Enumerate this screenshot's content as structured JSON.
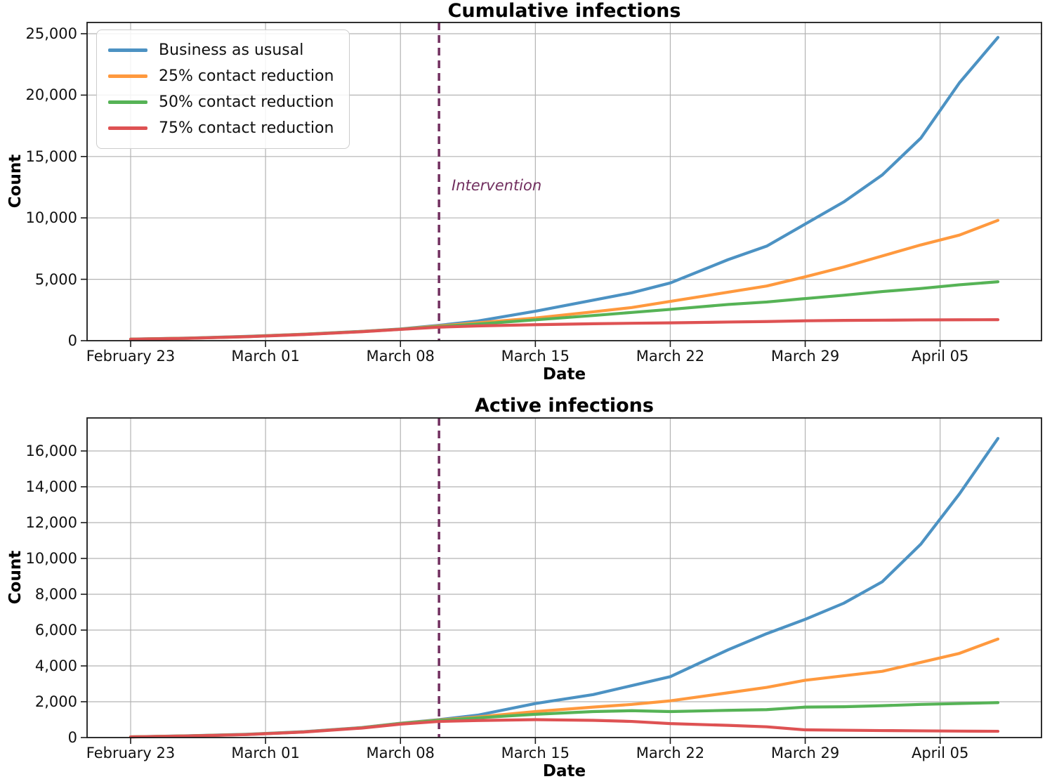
{
  "colors": {
    "blue": "#4C92C3",
    "orange": "#FF993E",
    "green": "#56B356",
    "red": "#DE5253",
    "intervention": "#712F5F",
    "grid": "#B3B3B3",
    "spine": "#1a1a1a"
  },
  "legend": {
    "items": [
      {
        "label": "Business as ususal",
        "color_key": "blue"
      },
      {
        "label": "25% contact reduction",
        "color_key": "orange"
      },
      {
        "label": "50% contact reduction",
        "color_key": "green"
      },
      {
        "label": "75% contact reduction",
        "color_key": "red"
      }
    ]
  },
  "intervention": {
    "label": "Intervention",
    "day": 16
  },
  "chart_data": [
    {
      "type": "line",
      "title": "Cumulative infections",
      "xlabel": "Date",
      "ylabel": "Count",
      "grid": true,
      "legend_position": "upper left",
      "x_tick_labels": [
        "February 23",
        "March 01",
        "March 08",
        "March 15",
        "March 22",
        "March 29",
        "April 05"
      ],
      "x_tick_days": [
        0,
        7,
        14,
        21,
        28,
        35,
        42
      ],
      "x_range_days": [
        0,
        45
      ],
      "y_ticks": [
        0,
        5000,
        10000,
        15000,
        20000,
        25000
      ],
      "y_tick_labels": [
        "0",
        "5,000",
        "10,000",
        "15,000",
        "20,000",
        "25,000"
      ],
      "intervention_day": 16,
      "days": [
        0,
        3,
        6,
        9,
        12,
        14,
        16,
        18,
        21,
        24,
        26,
        28,
        31,
        33,
        35,
        37,
        39,
        41,
        43,
        45
      ],
      "series": [
        {
          "name": "Business as ususal",
          "color_key": "blue",
          "values": [
            130,
            210,
            350,
            530,
            760,
            950,
            1250,
            1600,
            2400,
            3300,
            3900,
            4700,
            6600,
            7700,
            9500,
            11300,
            13500,
            16500,
            21000,
            24700
          ]
        },
        {
          "name": "25% contact reduction",
          "color_key": "orange",
          "values": [
            125,
            205,
            340,
            520,
            750,
            940,
            1200,
            1450,
            1850,
            2350,
            2700,
            3200,
            3950,
            4450,
            5200,
            6000,
            6900,
            7800,
            8600,
            9800
          ]
        },
        {
          "name": "50% contact reduction",
          "color_key": "green",
          "values": [
            120,
            200,
            330,
            510,
            740,
            930,
            1150,
            1350,
            1700,
            2050,
            2300,
            2550,
            2950,
            3150,
            3430,
            3700,
            4000,
            4250,
            4550,
            4800
          ]
        },
        {
          "name": "75% contact reduction",
          "color_key": "red",
          "values": [
            115,
            195,
            320,
            500,
            730,
            920,
            1100,
            1200,
            1300,
            1380,
            1420,
            1450,
            1520,
            1560,
            1620,
            1650,
            1670,
            1690,
            1700,
            1710
          ]
        }
      ]
    },
    {
      "type": "line",
      "title": "Active infections",
      "xlabel": "Date",
      "ylabel": "Count",
      "grid": true,
      "legend_position": "none",
      "x_tick_labels": [
        "February 23",
        "March 01",
        "March 08",
        "March 15",
        "March 22",
        "March 29",
        "April 05"
      ],
      "x_tick_days": [
        0,
        7,
        14,
        21,
        28,
        35,
        42
      ],
      "x_range_days": [
        0,
        45
      ],
      "y_ticks": [
        0,
        2000,
        4000,
        6000,
        8000,
        10000,
        12000,
        14000,
        16000
      ],
      "y_tick_labels": [
        "0",
        "2,000",
        "4,000",
        "6,000",
        "8,000",
        "10,000",
        "12,000",
        "14,000",
        "16,000"
      ],
      "intervention_day": 16,
      "days": [
        0,
        3,
        6,
        9,
        12,
        14,
        16,
        18,
        21,
        24,
        26,
        28,
        31,
        33,
        35,
        37,
        39,
        41,
        43,
        45
      ],
      "series": [
        {
          "name": "Business as ususal",
          "color_key": "blue",
          "values": [
            40,
            100,
            180,
            330,
            560,
            800,
            1000,
            1250,
            1900,
            2400,
            2900,
            3400,
            4900,
            5800,
            6600,
            7500,
            8700,
            10800,
            13600,
            16700
          ]
        },
        {
          "name": "25% contact reduction",
          "color_key": "orange",
          "values": [
            38,
            95,
            175,
            320,
            550,
            790,
            980,
            1150,
            1450,
            1700,
            1850,
            2050,
            2500,
            2800,
            3200,
            3450,
            3700,
            4200,
            4700,
            5500
          ]
        },
        {
          "name": "50% contact reduction",
          "color_key": "green",
          "values": [
            36,
            92,
            170,
            315,
            545,
            780,
            960,
            1100,
            1300,
            1450,
            1500,
            1450,
            1520,
            1560,
            1700,
            1720,
            1780,
            1850,
            1900,
            1950
          ]
        },
        {
          "name": "75% contact reduction",
          "color_key": "red",
          "values": [
            34,
            88,
            165,
            310,
            530,
            750,
            900,
            950,
            1000,
            960,
            900,
            780,
            680,
            600,
            430,
            410,
            390,
            375,
            360,
            350
          ]
        }
      ]
    }
  ]
}
